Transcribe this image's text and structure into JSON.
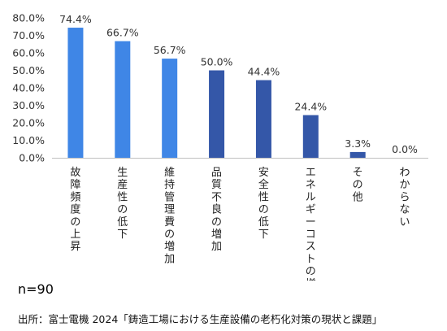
{
  "chart_data": {
    "type": "bar",
    "categories": [
      "故障頻度の上昇",
      "生産性の低下",
      "維持管理費の増加",
      "品質不良の増加",
      "安全性の低下",
      "エネルギーコストの増加",
      "その他",
      "わからない"
    ],
    "values": [
      74.4,
      66.7,
      56.7,
      50.0,
      44.4,
      24.4,
      3.3,
      0.0
    ],
    "data_labels": [
      "74.4%",
      "66.7%",
      "56.7%",
      "50.0%",
      "44.4%",
      "24.4%",
      "3.3%",
      "0.0%"
    ],
    "yticks": [
      0,
      10,
      20,
      30,
      40,
      50,
      60,
      70,
      80
    ],
    "ytick_labels": [
      "0.0%",
      "10.0%",
      "20.0%",
      "30.0%",
      "40.0%",
      "50.0%",
      "60.0%",
      "70.0%",
      "80.0%"
    ],
    "ylim": [
      0,
      80
    ],
    "grid": false,
    "legend": "none",
    "bar_colors": [
      "#3f86e6",
      "#3f86e6",
      "#3f86e6",
      "#3457a8",
      "#3457a8",
      "#3457a8",
      "#3457a8",
      "#3457a8"
    ],
    "axis_color": "#bfbfbf"
  },
  "sample_size": "n=90",
  "source": "出所：富士電機 2024「鋳造工場における生産設備の老朽化対策の現状と課題」"
}
